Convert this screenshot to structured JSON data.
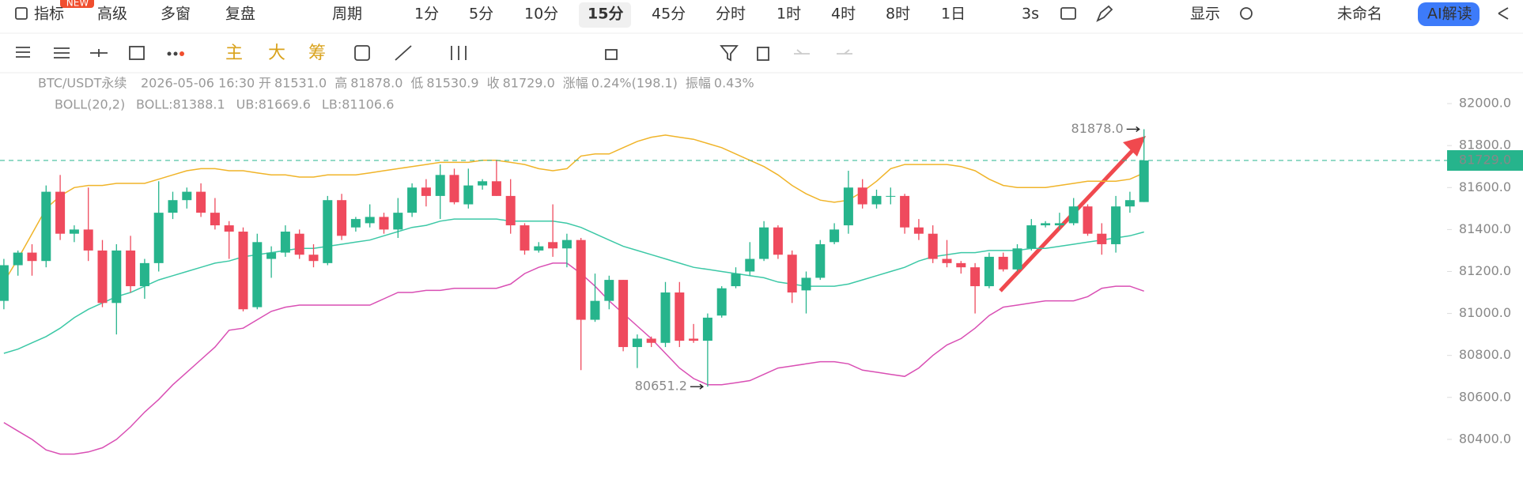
{
  "toolbar": {
    "row1": [
      "指标",
      "高级",
      "多窗",
      "复盘",
      "周期",
      "1分",
      "5分",
      "10分",
      "15分",
      "45分",
      "分时",
      "1时",
      "4时",
      "8时",
      "1日",
      "3s",
      "显示",
      "未命名",
      "AI解读"
    ],
    "badge": "NEW",
    "selected": "15分",
    "row2": [
      "主",
      "大",
      "筹"
    ]
  },
  "info": {
    "symbol": "BTC/USDT永续",
    "time": "2026-05-06 16:30",
    "fields": [
      {
        "label": "开",
        "value": "81531.0"
      },
      {
        "label": "高",
        "value": "81878.0"
      },
      {
        "label": "低",
        "value": "81530.9"
      },
      {
        "label": "收",
        "value": "81729.0"
      },
      {
        "label": "涨幅",
        "value": "0.24%(198.1)"
      },
      {
        "label": "振幅",
        "value": "0.43%"
      }
    ]
  },
  "indicator": {
    "name": "BOLL(20,2)",
    "fields": [
      "BOLL:81388.1",
      "UB:81669.6",
      "LB:81106.6"
    ]
  },
  "chart_data": {
    "type": "candlestick",
    "up_color": "#26b48c",
    "down_color": "#ef4a5d",
    "open": [
      81060,
      81230,
      81290,
      81250,
      81580,
      81380,
      81400,
      81300,
      81050,
      81300,
      81130,
      81240,
      81480,
      81540,
      81580,
      81480,
      81420,
      81390,
      81030,
      81260,
      81290,
      81380,
      81280,
      81240,
      81540,
      81410,
      81430,
      81460,
      81400,
      81480,
      81600,
      81560,
      81660,
      81520,
      81610,
      81630,
      81560,
      81420,
      81300,
      81340,
      81310,
      81350,
      80970,
      81060,
      81160,
      80840,
      80880,
      80860,
      81100,
      80880,
      80870,
      80990,
      81130,
      81200,
      81260,
      81410,
      81280,
      81110,
      81170,
      81340,
      81420,
      81600,
      81520,
      81560,
      81560,
      81410,
      81380,
      81260,
      81240,
      81220,
      81130,
      81270,
      81210,
      81310,
      81420,
      81420,
      81430,
      81510,
      81380,
      81330,
      81510,
      81531
    ],
    "high": [
      81260,
      81300,
      81330,
      81610,
      81660,
      81420,
      81600,
      81350,
      81330,
      81370,
      81260,
      81630,
      81580,
      81600,
      81620,
      81550,
      81440,
      81410,
      81380,
      81320,
      81420,
      81400,
      81330,
      81560,
      81570,
      81460,
      81520,
      81480,
      81550,
      81620,
      81640,
      81710,
      81690,
      81690,
      81640,
      81730,
      81640,
      81430,
      81340,
      81520,
      81380,
      81360,
      81190,
      81180,
      81160,
      80900,
      80890,
      81150,
      81150,
      80950,
      81000,
      81130,
      81220,
      81340,
      81440,
      81420,
      81300,
      81200,
      81350,
      81430,
      81680,
      81640,
      81590,
      81600,
      81570,
      81450,
      81420,
      81350,
      81250,
      81240,
      81290,
      81290,
      81330,
      81450,
      81440,
      81480,
      81550,
      81520,
      81430,
      81560,
      81580,
      81878
    ],
    "low": [
      81020,
      81180,
      81180,
      81220,
      81350,
      81340,
      81250,
      81030,
      80900,
      81100,
      81070,
      81200,
      81450,
      81500,
      81460,
      81400,
      81260,
      81010,
      81020,
      81170,
      81270,
      81260,
      81220,
      81230,
      81350,
      81390,
      81410,
      81380,
      81360,
      81460,
      81510,
      81450,
      81520,
      81500,
      81590,
      81560,
      81380,
      81280,
      81290,
      81270,
      81220,
      80730,
      80960,
      81020,
      80820,
      80740,
      80840,
      80840,
      80840,
      80860,
      80651.2,
      80980,
      81120,
      81180,
      81250,
      81260,
      81050,
      81000,
      81160,
      81330,
      81380,
      81500,
      81500,
      81520,
      81380,
      81350,
      81240,
      81220,
      81190,
      81000,
      81120,
      81200,
      81200,
      81300,
      81410,
      81400,
      81420,
      81370,
      81280,
      81290,
      81480,
      81530.9
    ],
    "close": [
      81230,
      81290,
      81250,
      81580,
      81380,
      81400,
      81300,
      81050,
      81300,
      81130,
      81240,
      81480,
      81540,
      81580,
      81480,
      81420,
      81390,
      81020,
      81340,
      81290,
      81390,
      81280,
      81250,
      81540,
      81370,
      81450,
      81460,
      81400,
      81480,
      81600,
      81560,
      81660,
      81530,
      81610,
      81630,
      81560,
      81420,
      81300,
      81320,
      81310,
      81350,
      80970,
      81060,
      81160,
      80840,
      80880,
      80860,
      81100,
      80870,
      80870,
      80980,
      81120,
      81190,
      81260,
      81410,
      81280,
      81100,
      81170,
      81330,
      81400,
      81600,
      81520,
      81560,
      81560,
      81410,
      81380,
      81260,
      81240,
      81220,
      81130,
      81270,
      81210,
      81310,
      81420,
      81430,
      81430,
      81510,
      81380,
      81330,
      81510,
      81540,
      81729
    ],
    "lines": [
      {
        "color": "#3cc8a6",
        "values": [
          80810,
          80830,
          80860,
          80890,
          80930,
          80980,
          81020,
          81050,
          81080,
          81100,
          81130,
          81160,
          81180,
          81200,
          81220,
          81240,
          81250,
          81270,
          81280,
          81290,
          81300,
          81310,
          81310,
          81320,
          81330,
          81340,
          81350,
          81370,
          81390,
          81410,
          81420,
          81440,
          81450,
          81450,
          81450,
          81450,
          81440,
          81440,
          81440,
          81440,
          81430,
          81410,
          81380,
          81350,
          81320,
          81300,
          81280,
          81260,
          81240,
          81220,
          81210,
          81200,
          81190,
          81180,
          81170,
          81150,
          81140,
          81130,
          81130,
          81130,
          81140,
          81160,
          81180,
          81200,
          81220,
          81250,
          81270,
          81280,
          81290,
          81290,
          81300,
          81300,
          81300,
          81310,
          81310,
          81320,
          81330,
          81340,
          81350,
          81360,
          81370,
          81388.1
        ]
      },
      {
        "color": "#f0b429",
        "values": [
          81150,
          81260,
          81380,
          81500,
          81560,
          81600,
          81610,
          81610,
          81620,
          81620,
          81620,
          81640,
          81660,
          81680,
          81690,
          81690,
          81680,
          81680,
          81670,
          81660,
          81660,
          81650,
          81650,
          81660,
          81660,
          81660,
          81670,
          81680,
          81690,
          81700,
          81710,
          81720,
          81720,
          81720,
          81730,
          81730,
          81720,
          81710,
          81690,
          81680,
          81690,
          81750,
          81760,
          81760,
          81790,
          81820,
          81840,
          81850,
          81840,
          81830,
          81810,
          81790,
          81760,
          81730,
          81700,
          81660,
          81610,
          81570,
          81540,
          81530,
          81540,
          81580,
          81630,
          81690,
          81710,
          81710,
          81710,
          81710,
          81700,
          81680,
          81640,
          81610,
          81600,
          81600,
          81600,
          81610,
          81620,
          81630,
          81630,
          81630,
          81640,
          81669.6
        ]
      },
      {
        "color": "#d94fb4",
        "values": [
          80480,
          80440,
          80400,
          80350,
          80330,
          80330,
          80340,
          80360,
          80400,
          80460,
          80530,
          80590,
          80660,
          80720,
          80780,
          80840,
          80920,
          80930,
          80970,
          81010,
          81030,
          81040,
          81040,
          81040,
          81040,
          81040,
          81040,
          81070,
          81100,
          81100,
          81110,
          81110,
          81120,
          81120,
          81120,
          81120,
          81140,
          81190,
          81220,
          81240,
          81240,
          81190,
          81130,
          81060,
          81000,
          80940,
          80880,
          80810,
          80740,
          80690,
          80660,
          80660,
          80670,
          80680,
          80710,
          80740,
          80750,
          80760,
          80770,
          80770,
          80760,
          80730,
          80720,
          80710,
          80700,
          80740,
          80800,
          80850,
          80880,
          80930,
          80990,
          81030,
          81040,
          81050,
          81060,
          81060,
          81060,
          81080,
          81120,
          81130,
          81130,
          81106.6
        ]
      }
    ],
    "ylim": [
      80215,
      82053
    ],
    "yticks": [
      {
        "value": 80400,
        "label": "80400.0"
      },
      {
        "value": 80600,
        "label": "80600.0"
      },
      {
        "value": 80800,
        "label": "80800.0"
      },
      {
        "value": 81000,
        "label": "81000.0"
      },
      {
        "value": 81200,
        "label": "81200.0"
      },
      {
        "value": 81400,
        "label": "81400.0"
      },
      {
        "value": 81600,
        "label": "81600.0"
      },
      {
        "value": 81800,
        "label": "81800.0"
      },
      {
        "value": 82000,
        "label": "82000.0"
      }
    ],
    "last_price": {
      "value": 81729,
      "label": "81729.0"
    },
    "annotations": [
      {
        "value": 81878,
        "label": "81878.0"
      },
      {
        "value": 80651.2,
        "label": "80651.2"
      }
    ]
  }
}
